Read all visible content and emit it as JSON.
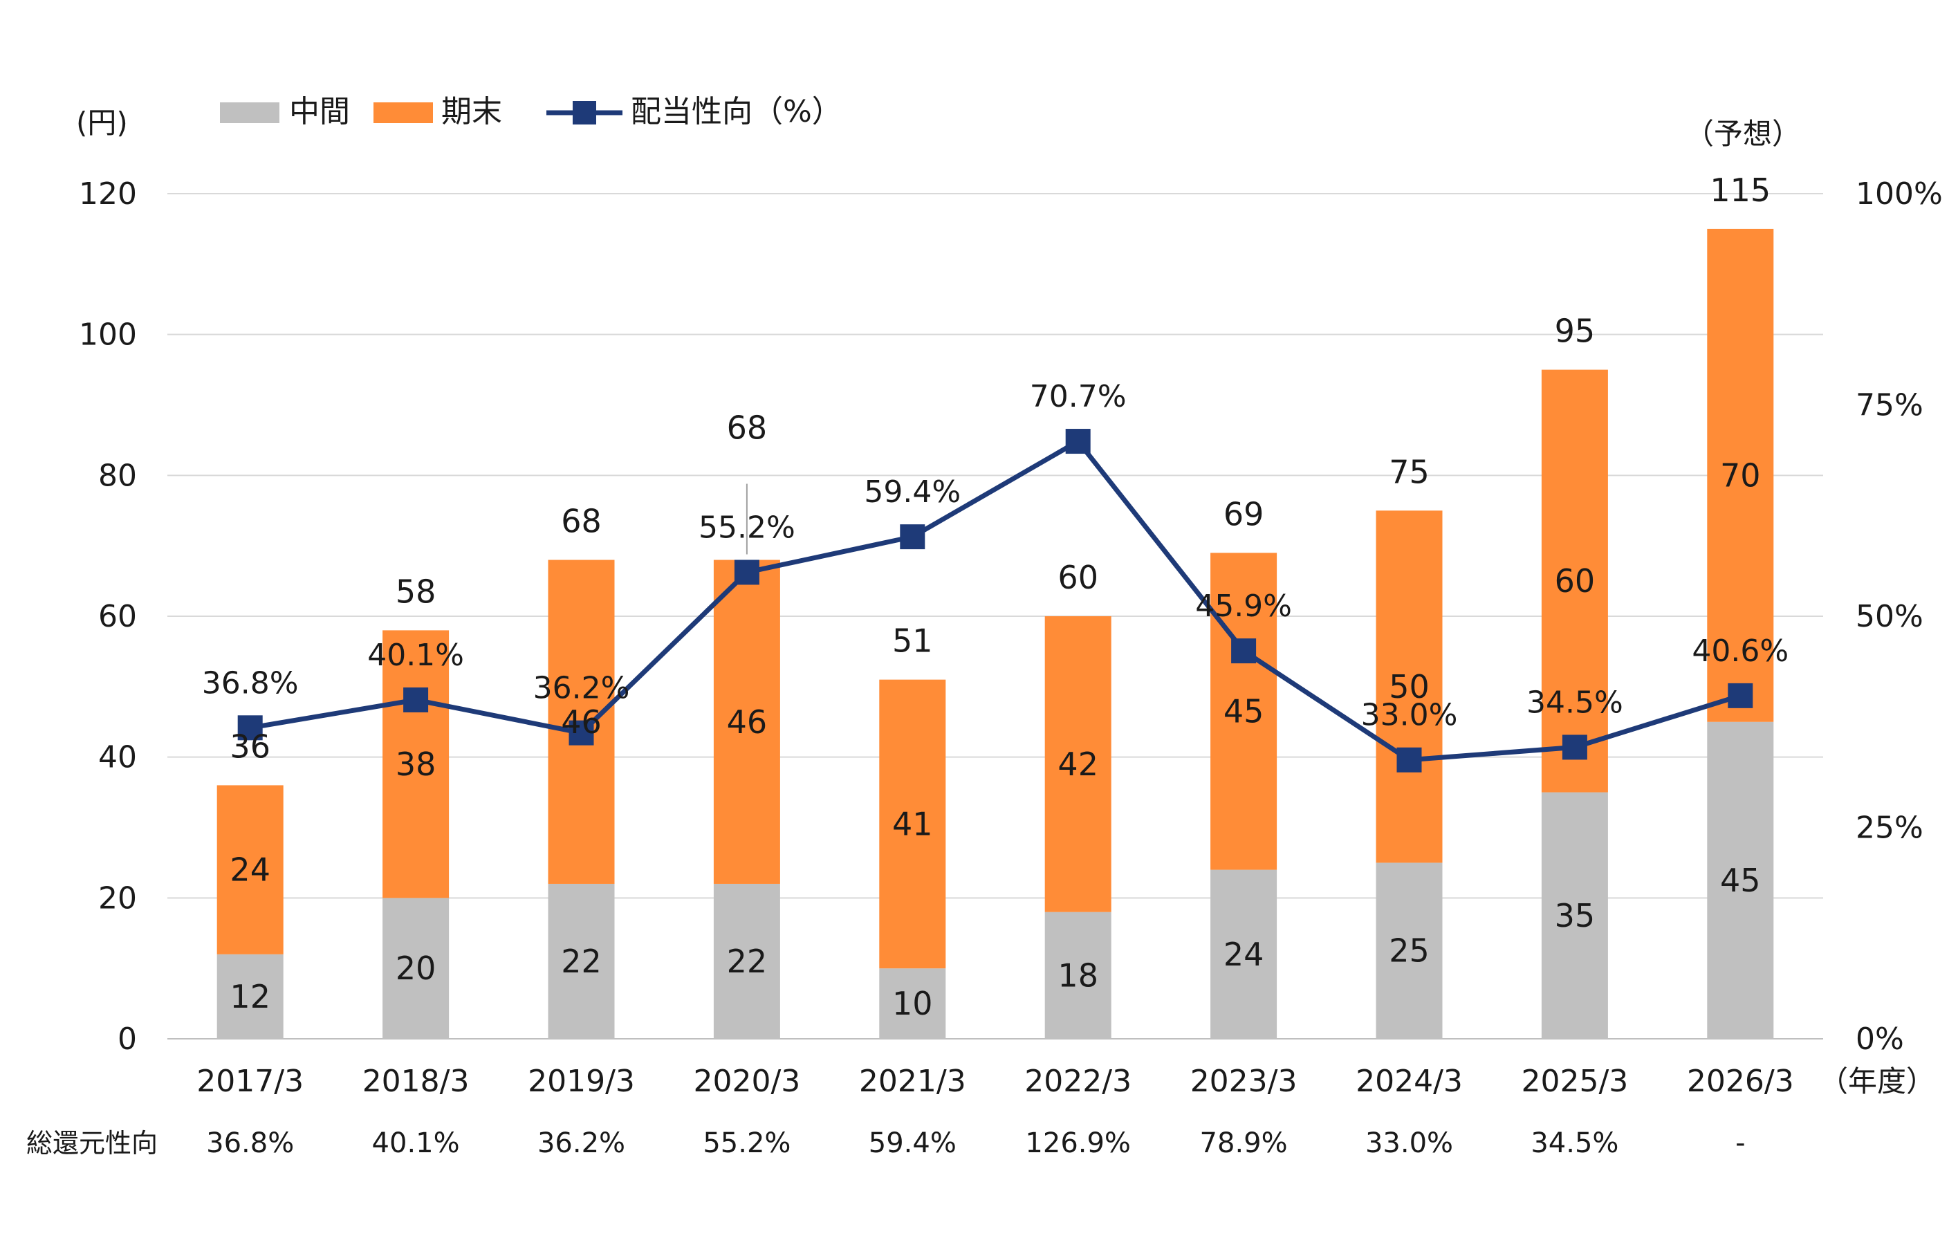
{
  "chart_data": {
    "type": "bar",
    "stacked": true,
    "categories": [
      "2017/3",
      "2018/3",
      "2019/3",
      "2020/3",
      "2021/3",
      "2022/3",
      "2023/3",
      "2024/3",
      "2025/3",
      "2026/3"
    ],
    "series": [
      {
        "name": "中間",
        "type": "bar",
        "color": "#c0c0c0",
        "values": [
          12,
          20,
          22,
          22,
          10,
          18,
          24,
          25,
          35,
          45
        ]
      },
      {
        "name": "期末",
        "type": "bar",
        "color": "#ff8c37",
        "values": [
          24,
          38,
          46,
          46,
          41,
          42,
          45,
          50,
          60,
          70
        ]
      },
      {
        "name": "配当性向（%）",
        "type": "line",
        "axis": "right",
        "color": "#1e3a78",
        "values": [
          36.8,
          40.1,
          36.2,
          55.2,
          59.4,
          70.7,
          45.9,
          33.0,
          34.5,
          40.6
        ]
      }
    ],
    "totals": [
      "36",
      "58",
      "68",
      "68",
      "51",
      "60",
      "69",
      "75",
      "95",
      "115"
    ],
    "ratio_labels": [
      "36.8%",
      "40.1%",
      "36.2%",
      "55.2%",
      "59.4%",
      "70.7%",
      "45.9%",
      "33.0%",
      "34.5%",
      "40.6%"
    ],
    "forecast_label": "（予想）",
    "ylabel": "(円)",
    "xlabel": "（年度）",
    "ylim": [
      0,
      120
    ],
    "yticks": [
      "0",
      "20",
      "40",
      "60",
      "80",
      "100",
      "120"
    ],
    "y2lim": [
      0,
      100
    ],
    "y2ticks": [
      "0%",
      "25%",
      "50%",
      "75%",
      "100%"
    ],
    "grid": true,
    "legend_position": "top-left",
    "total_return": {
      "label": "総還元性向",
      "values": [
        "36.8%",
        "40.1%",
        "36.2%",
        "55.2%",
        "59.4%",
        "126.9%",
        "78.9%",
        "33.0%",
        "34.5%",
        "-"
      ]
    }
  }
}
